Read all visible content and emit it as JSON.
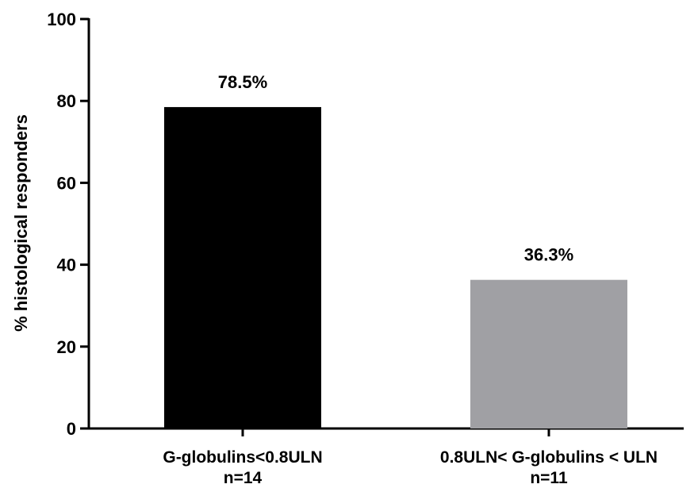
{
  "chart_data": {
    "type": "bar",
    "categories": [
      {
        "line1": "G-globulins<0.8ULN",
        "line2": "n=14"
      },
      {
        "line1": "0.8ULN< G-globulins < ULN",
        "line2": "n=11"
      }
    ],
    "values": [
      78.5,
      36.3
    ],
    "data_labels": [
      "78.5%",
      "36.3%"
    ],
    "bar_colors": [
      "#000000",
      "#a0a0a4"
    ],
    "title": "",
    "xlabel": "",
    "ylabel": "% histological responders",
    "ylim": [
      0,
      100
    ],
    "yticks": [
      0,
      20,
      40,
      60,
      80,
      100
    ],
    "grid": false,
    "legend": "none"
  }
}
